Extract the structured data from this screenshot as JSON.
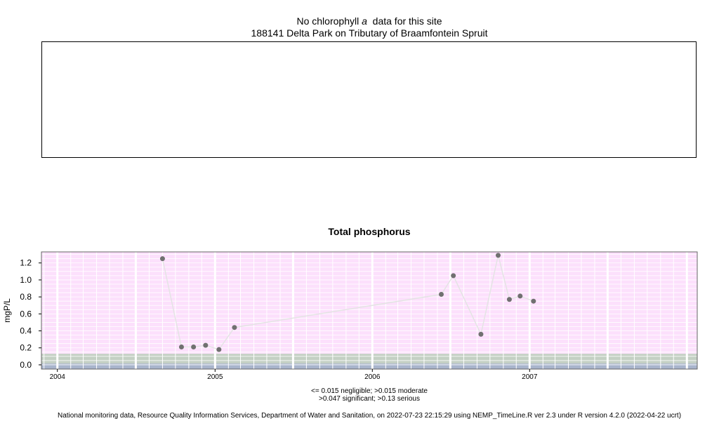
{
  "top_panel": {
    "title_prefix": "No chlorophyll",
    "title_italic": "a",
    "title_suffix": "data for this site",
    "site": "188141 Delta Park on Tributary of Braamfontein Spruit"
  },
  "legend_note": {
    "line1": "<= 0.015 negligible; >0.015 moderate",
    "line2": ">0.047 significant; >0.13 serious"
  },
  "footer": "National monitoring data, Resource Quality Information Services, Department of Water and Sanitation, on 2022-07-23 22:15:29 using NEMP_TimeLine.R ver 2.3 under R version 4.2.0 (2022-04-22 ucrt)",
  "colors": {
    "band_serious": "#fce0fc",
    "band_significant": "#c4d0c4",
    "band_moderate": "#a8b4cc",
    "point": "#707070",
    "line": "#e4e4e4"
  },
  "chart_data": {
    "type": "line",
    "title": "Total phosphorus",
    "ylabel": "mgP/L",
    "xlabel": "",
    "ylim": [
      -0.05,
      1.33
    ],
    "y_ticks": [
      0.0,
      0.2,
      0.4,
      0.6,
      0.8,
      1.0,
      1.2
    ],
    "y_tick_labels": [
      "0.0",
      "0.2",
      "0.4",
      "0.6",
      "0.8",
      "1.0",
      "1.2"
    ],
    "x_ticks": [
      "2004",
      "2005",
      "2006",
      "2007"
    ],
    "thresholds": [
      0.015,
      0.047,
      0.13
    ],
    "series": [
      {
        "x": [
          "2004-09-01",
          "2004-10-15",
          "2004-11-12",
          "2004-12-10",
          "2005-01-10",
          "2005-02-15",
          "2006-06-10",
          "2006-07-08",
          "2006-09-10",
          "2006-10-20",
          "2006-11-15",
          "2006-12-10",
          "2007-01-10"
        ],
        "values": [
          1.25,
          0.21,
          0.21,
          0.23,
          0.18,
          0.44,
          0.83,
          1.05,
          0.36,
          1.29,
          0.77,
          0.81,
          0.75
        ]
      }
    ]
  }
}
